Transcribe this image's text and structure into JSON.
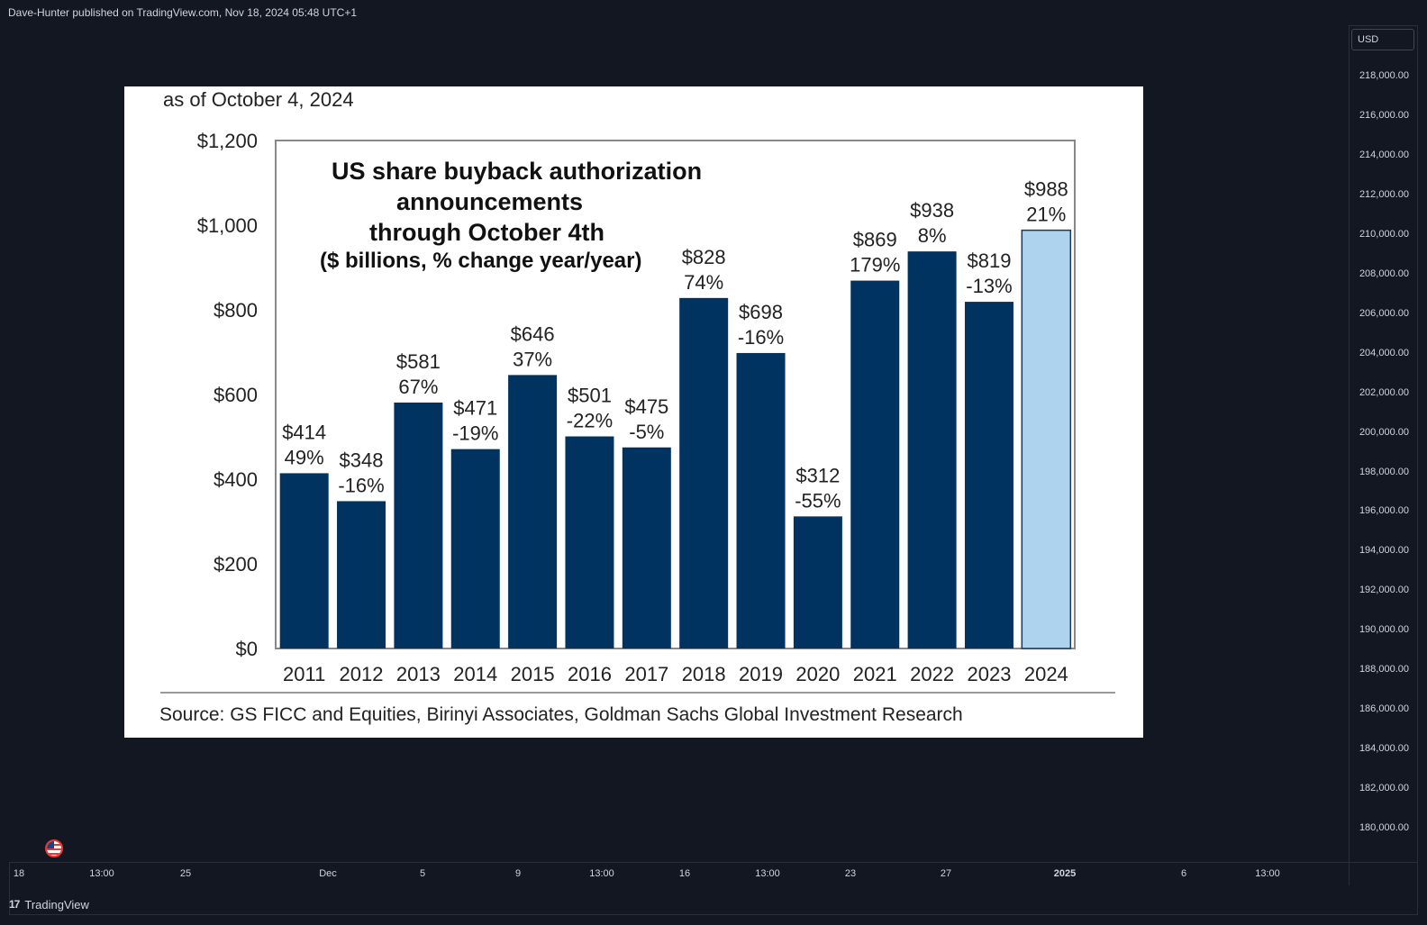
{
  "header": {
    "publish_line": "Dave-Hunter published on TradingView.com, Nov 18, 2024 05:48 UTC+1"
  },
  "price_axis": {
    "currency": "USD",
    "labels": [
      "218,000.00",
      "216,000.00",
      "214,000.00",
      "212,000.00",
      "210,000.00",
      "208,000.00",
      "206,000.00",
      "204,000.00",
      "202,000.00",
      "200,000.00",
      "198,000.00",
      "196,000.00",
      "194,000.00",
      "192,000.00",
      "190,000.00",
      "188,000.00",
      "186,000.00",
      "184,000.00",
      "182,000.00",
      "180,000.00"
    ]
  },
  "time_axis": {
    "labels": [
      {
        "text": "18",
        "bold": false
      },
      {
        "text": "13:00",
        "bold": false
      },
      {
        "text": "25",
        "bold": false
      },
      {
        "text": "Dec",
        "bold": false
      },
      {
        "text": "5",
        "bold": false
      },
      {
        "text": "9",
        "bold": false
      },
      {
        "text": "13:00",
        "bold": false
      },
      {
        "text": "16",
        "bold": false
      },
      {
        "text": "13:00",
        "bold": false
      },
      {
        "text": "23",
        "bold": false
      },
      {
        "text": "27",
        "bold": false
      },
      {
        "text": "2025",
        "bold": true
      },
      {
        "text": "6",
        "bold": false
      },
      {
        "text": "13:00",
        "bold": false
      }
    ]
  },
  "footer": {
    "brand": "TradingView",
    "logo_text": "17"
  },
  "icons": {
    "flag": "us-flag-icon"
  },
  "colors": {
    "bar_dark": "#003360",
    "bar_light": "#aed3ef",
    "background": "#131722"
  },
  "chart_data": {
    "type": "bar",
    "date_note": "as of October 4, 2024",
    "title_lines": [
      "US share buyback authorization",
      "announcements",
      "through October 4th"
    ],
    "subtitle": "($ billions, % change year/year)",
    "categories": [
      "2011",
      "2012",
      "2013",
      "2014",
      "2015",
      "2016",
      "2017",
      "2018",
      "2019",
      "2020",
      "2021",
      "2022",
      "2023",
      "2024"
    ],
    "values": [
      414,
      348,
      581,
      471,
      646,
      501,
      475,
      828,
      698,
      312,
      869,
      938,
      819,
      988
    ],
    "value_labels": [
      "$414",
      "$348",
      "$581",
      "$471",
      "$646",
      "$501",
      "$475",
      "$828",
      "$698",
      "$312",
      "$869",
      "$938",
      "$819",
      "$988"
    ],
    "pct_labels": [
      "49%",
      "-16%",
      "67%",
      "-19%",
      "37%",
      "-22%",
      "-5%",
      "74%",
      "-16%",
      "-55%",
      "179%",
      "8%",
      "-13%",
      "21%"
    ],
    "highlight_category": "2024",
    "y_ticks": [
      "$0",
      "$200",
      "$400",
      "$600",
      "$800",
      "$1,000",
      "$1,200"
    ],
    "y_tick_values": [
      0,
      200,
      400,
      600,
      800,
      1000,
      1200
    ],
    "ylim": [
      0,
      1200
    ],
    "source": "Source: GS FICC and Equities, Birinyi Associates, Goldman Sachs Global Investment Research"
  }
}
